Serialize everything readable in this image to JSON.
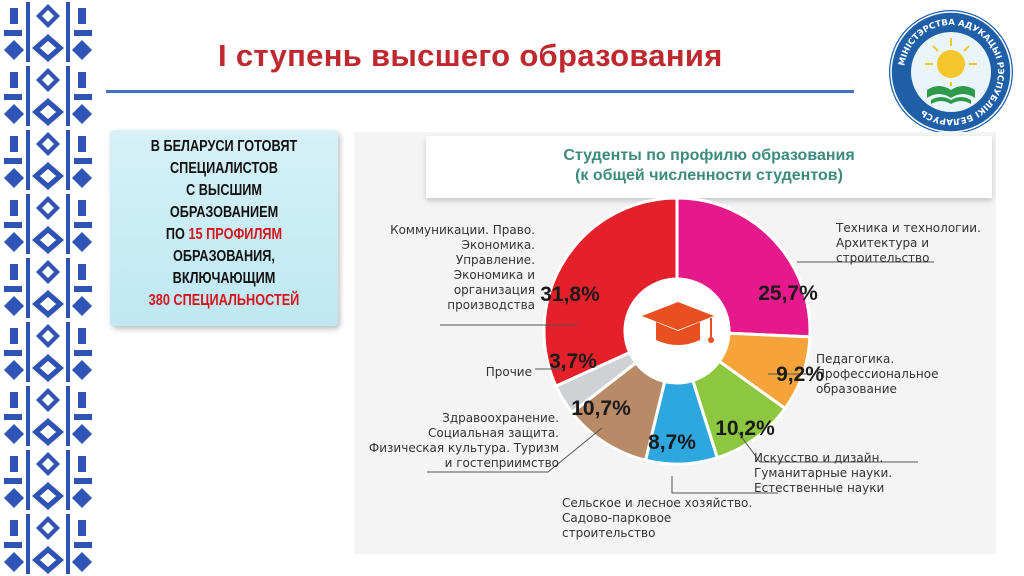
{
  "header": {
    "title": "I ступень высшего образования"
  },
  "emblem": {
    "ring_text": "МІНІСТЭРСТВА АДУКАЦЫІ РЭСПУБЛІКІ БЕЛАРУСЬ"
  },
  "infobox": {
    "line1": "В БЕЛАРУСИ ГОТОВЯТ",
    "line2": "СПЕЦИАЛИСТОВ",
    "line3": "С ВЫСШИМ ОБРАЗОВАНИЕМ",
    "line4_pre": "ПО ",
    "line4_hl": "15 ПРОФИЛЯМ",
    "line5": "ОБРАЗОВАНИЯ,",
    "line6": "ВКЛЮЧАЮЩИМ",
    "line7_hl": "380 СПЕЦИАЛЬНОСТЕЙ"
  },
  "colors": {
    "title_red": "#c0282f",
    "highlight_red": "#d6141d",
    "chart_title_green": "#3d8b7d",
    "rule_blue": "#4a6fbf"
  },
  "chart_data": {
    "type": "pie",
    "style": "donut",
    "title": "Студенты по профилю образования\n(к общей численности студентов)",
    "center_icon": "graduation-cap-icon",
    "slices": [
      {
        "label": "Техника и технологии.\nАрхитектура и\nстроительство",
        "value": 25.7,
        "value_label": "25,7%",
        "color": "#e5198b"
      },
      {
        "label": "Педагогика.\nПрофессиональное\nобразование",
        "value": 9.2,
        "value_label": "9,2%",
        "color": "#f6a33a"
      },
      {
        "label": "Искусство и дизайн.\nГуманитарные науки.\nЕстественные науки",
        "value": 10.2,
        "value_label": "10,2%",
        "color": "#8dc63f"
      },
      {
        "label": "Сельское и лесное хозяйство.\nСадово-парковое\nстроительство",
        "value": 8.7,
        "value_label": "8,7%",
        "color": "#2ea6de"
      },
      {
        "label": "Здравоохранение.\nСоциальная защита.\nФизическая культура. Туризм\nи гостеприимство",
        "value": 10.7,
        "value_label": "10,7%",
        "color": "#b98a67"
      },
      {
        "label": "Прочие",
        "value": 3.7,
        "value_label": "3,7%",
        "color": "#cfd2d4"
      },
      {
        "label": "Коммуникации. Право.\nЭкономика.\nУправление.\nЭкономика и\nорганизация\nпроизводства",
        "value": 31.8,
        "value_label": "31,8%",
        "color": "#e4202b"
      }
    ]
  }
}
